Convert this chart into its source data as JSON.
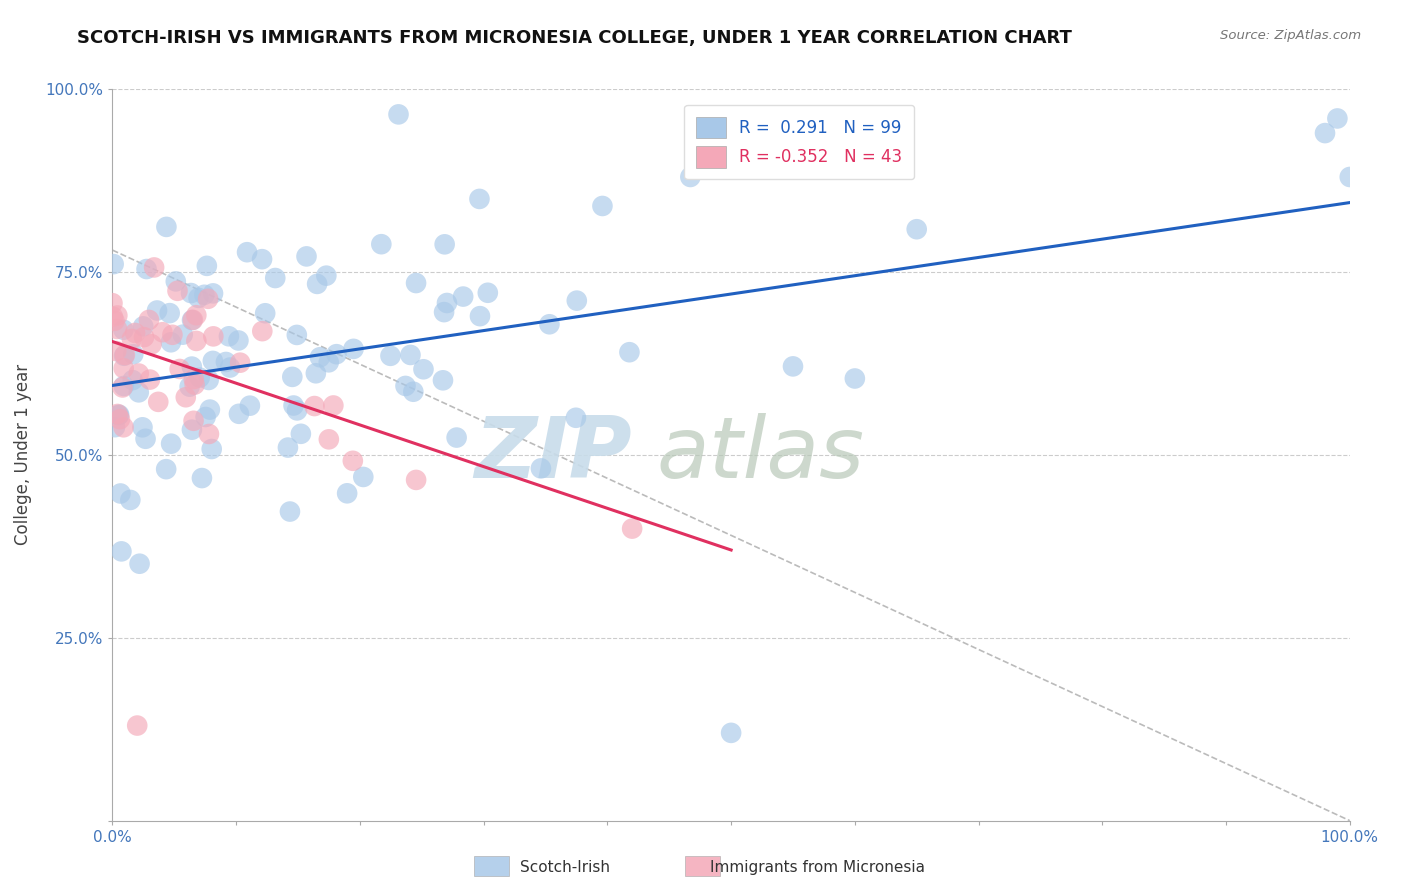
{
  "title": "SCOTCH-IRISH VS IMMIGRANTS FROM MICRONESIA COLLEGE, UNDER 1 YEAR CORRELATION CHART",
  "source_text": "Source: ZipAtlas.com",
  "ylabel": "College, Under 1 year",
  "xlim": [
    0.0,
    1.0
  ],
  "ylim": [
    0.0,
    1.0
  ],
  "r_blue": 0.291,
  "n_blue": 99,
  "r_pink": -0.352,
  "n_pink": 43,
  "blue_color": "#a8c8e8",
  "pink_color": "#f4a8b8",
  "blue_line_color": "#2060c0",
  "pink_line_color": "#e03060",
  "blue_text_color": "#2060c0",
  "pink_text_color": "#e03060",
  "grid_color": "#cccccc",
  "background_color": "#ffffff",
  "watermark_color": "#c8dcea",
  "blue_trend": [
    0.0,
    1.0,
    0.595,
    0.845
  ],
  "pink_trend": [
    0.0,
    0.5,
    0.655,
    0.37
  ],
  "dashed_line": [
    0.0,
    1.0,
    0.78,
    0.0
  ]
}
